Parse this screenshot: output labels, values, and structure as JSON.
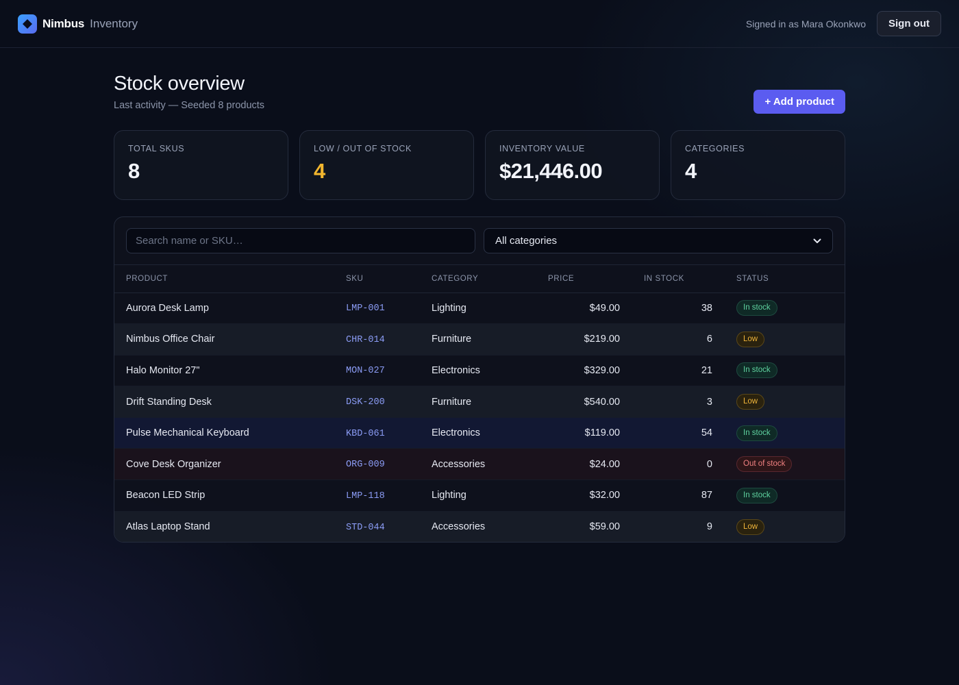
{
  "app": {
    "name": "Nimbus",
    "section": "Inventory",
    "signed_in_text": "Signed in as Mara Okonkwo",
    "sign_out_label": "Sign out"
  },
  "header": {
    "title": "Stock overview",
    "subtitle": "Last activity — Seeded 8 products",
    "add_button_label": "+ Add product"
  },
  "stats": [
    {
      "label": "TOTAL SKUS",
      "value": "8"
    },
    {
      "label": "LOW / OUT OF STOCK",
      "value": "4",
      "color": "#f2b62e"
    },
    {
      "label": "INVENTORY VALUE",
      "value": "$21,446.00"
    },
    {
      "label": "CATEGORIES",
      "value": "4"
    }
  ],
  "filters": {
    "search_placeholder": "Search name or SKU…",
    "search_value": "",
    "category_selected": "All categories"
  },
  "table": {
    "columns": [
      "PRODUCT",
      "SKU",
      "CATEGORY",
      "PRICE",
      "IN STOCK",
      "STATUS"
    ],
    "rows": [
      {
        "product": "Aurora Desk Lamp",
        "sku": "LMP-001",
        "category": "Lighting",
        "price": "$49.00",
        "stock": "38",
        "status": "In stock",
        "status_kind": "ok"
      },
      {
        "product": "Nimbus Office Chair",
        "sku": "CHR-014",
        "category": "Furniture",
        "price": "$219.00",
        "stock": "6",
        "status": "Low",
        "status_kind": "low"
      },
      {
        "product": "Halo Monitor 27\"",
        "sku": "MON-027",
        "category": "Electronics",
        "price": "$329.00",
        "stock": "21",
        "status": "In stock",
        "status_kind": "ok"
      },
      {
        "product": "Drift Standing Desk",
        "sku": "DSK-200",
        "category": "Furniture",
        "price": "$540.00",
        "stock": "3",
        "status": "Low",
        "status_kind": "low"
      },
      {
        "product": "Pulse Mechanical Keyboard",
        "sku": "KBD-061",
        "category": "Electronics",
        "price": "$119.00",
        "stock": "54",
        "status": "In stock",
        "status_kind": "ok"
      },
      {
        "product": "Cove Desk Organizer",
        "sku": "ORG-009",
        "category": "Accessories",
        "price": "$24.00",
        "stock": "0",
        "status": "Out of stock",
        "status_kind": "out"
      },
      {
        "product": "Beacon LED Strip",
        "sku": "LMP-118",
        "category": "Lighting",
        "price": "$32.00",
        "stock": "87",
        "status": "In stock",
        "status_kind": "ok"
      },
      {
        "product": "Atlas Laptop Stand",
        "sku": "STD-044",
        "category": "Accessories",
        "price": "$59.00",
        "stock": "9",
        "status": "Low",
        "status_kind": "low"
      }
    ]
  },
  "icons": {
    "logo": "diamond-logo-icon",
    "select": "chevron-down-icon"
  },
  "colors": {
    "accent": "#5b5cf0",
    "warning": "#f2b62e",
    "in_stock": "#5fd3a0",
    "low": "#f0b53a",
    "out_of_stock": "#f08080"
  }
}
